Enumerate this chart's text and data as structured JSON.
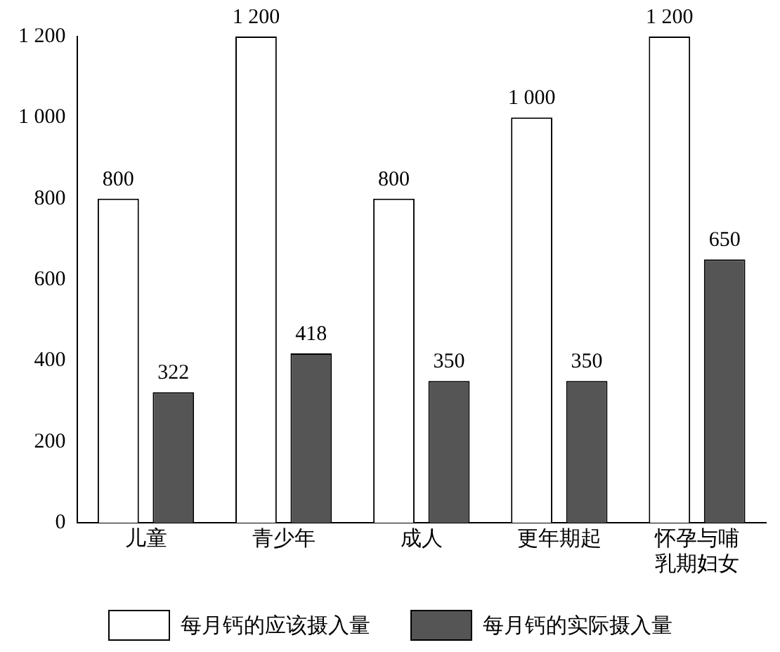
{
  "chart_data": {
    "type": "bar",
    "categories": [
      "儿童",
      "青少年",
      "成人",
      "更年期起",
      "怀孕与哺乳期妇女"
    ],
    "series": [
      {
        "name": "每月钙的应该摄入量",
        "color": "#ffffff",
        "values": [
          800,
          1200,
          800,
          1000,
          1200
        ],
        "value_labels": [
          "800",
          "1 200",
          "800",
          "1 000",
          "1 200"
        ]
      },
      {
        "name": "每月钙的实际摄入量",
        "color": "#555555",
        "values": [
          322,
          418,
          350,
          350,
          650
        ],
        "value_labels": [
          "322",
          "418",
          "350",
          "350",
          "650"
        ]
      }
    ],
    "ylim": [
      0,
      1200
    ],
    "yticks": [
      0,
      200,
      400,
      600,
      800,
      {
        "value": 1000,
        "label": "1 000"
      },
      {
        "value": 1200,
        "label": "1 200"
      }
    ],
    "grid": false,
    "legend": "bottom"
  }
}
